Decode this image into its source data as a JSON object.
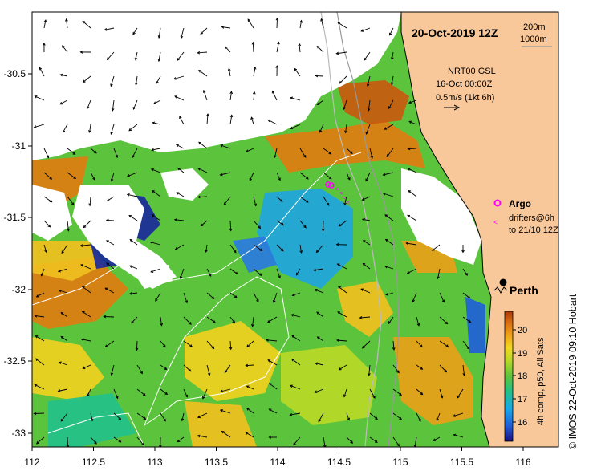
{
  "map": {
    "date_title": "20-Oct-2019 12Z",
    "depth_contours": [
      "200m",
      "1000m"
    ],
    "current_source": "NRT00 GSL",
    "current_time": "16-Oct 00:00Z",
    "current_scale": "0.5m/s (1kt 6h)",
    "argo_label": "Argo",
    "drifters_label_1": "drifters@6h",
    "drifters_label_2": "to 21/10 12Z",
    "city_label": "Perth",
    "credit": "© IMOS 22-Oct-2019 09:10 Hobart",
    "colorbar_caption": "4h comp, p50, All Sats",
    "colorbar_ticks": [
      "20",
      "19",
      "18",
      "17",
      "16"
    ],
    "x_ticks": [
      "112",
      "112.5",
      "113",
      "113.5",
      "114",
      "114.5",
      "115",
      "115.5",
      "116"
    ],
    "y_ticks": [
      "-30.5",
      "-31",
      "-31.5",
      "-32",
      "-32.5",
      "-33"
    ],
    "colors": {
      "land": "#f9c89a",
      "cloud": "#ffffff",
      "warm": "#e07c12",
      "cool": "#1f9fe0",
      "mid": "#5cc43c",
      "argo_marker": "#ff00ff"
    },
    "sst_range": [
      15.5,
      20.5
    ]
  }
}
